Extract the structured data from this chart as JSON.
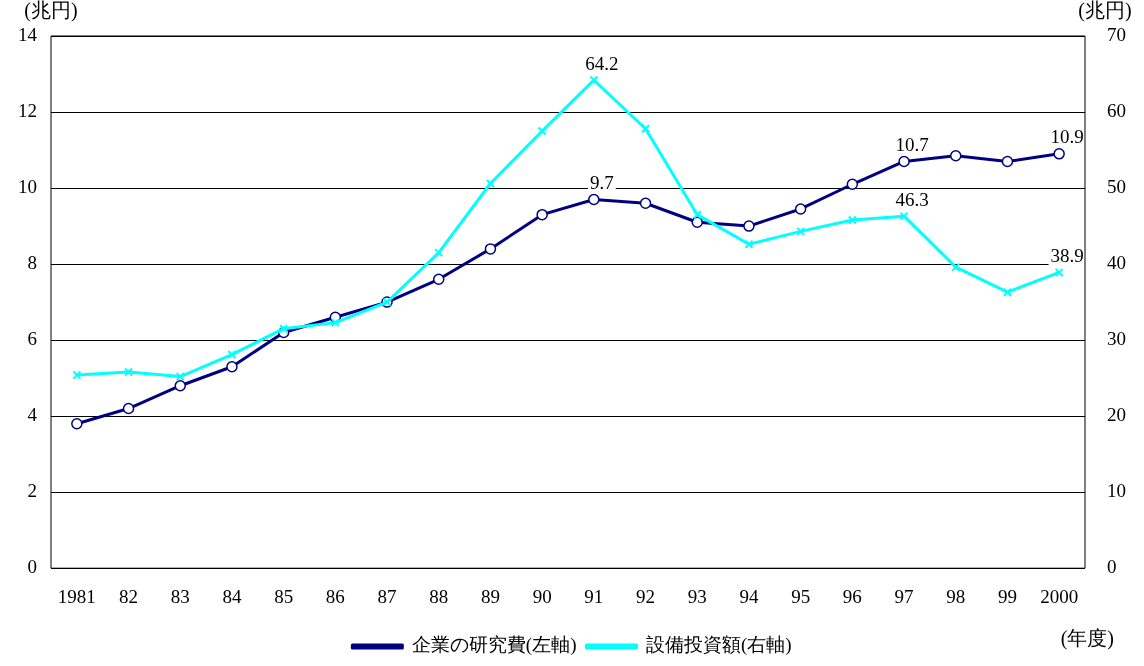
{
  "chart_data": {
    "type": "line",
    "ylabel": "(兆円)",
    "y2label": "(兆円)",
    "categories": [
      "1981",
      "82",
      "83",
      "84",
      "85",
      "86",
      "87",
      "88",
      "89",
      "90",
      "91",
      "92",
      "93",
      "94",
      "95",
      "96",
      "97",
      "98",
      "99",
      "2000"
    ],
    "series": [
      {
        "name": "企業の研究費(左軸)",
        "color": "#000080",
        "marker": "circle",
        "values": [
          3.8,
          4.2,
          4.8,
          5.3,
          6.2,
          6.6,
          7.0,
          7.6,
          8.4,
          9.3,
          9.7,
          9.6,
          9.1,
          9.0,
          9.45,
          10.1,
          10.7,
          10.85,
          10.7,
          10.9
        ],
        "value_labels": [
          null,
          null,
          null,
          null,
          null,
          null,
          null,
          null,
          null,
          null,
          "9.7",
          null,
          null,
          null,
          null,
          null,
          "10.7",
          null,
          null,
          "10.9"
        ]
      },
      {
        "name": "設備投資額(右軸)",
        "color": "#00ffff",
        "marker": "cross",
        "axis": "y2",
        "values": [
          25.4,
          25.8,
          25.2,
          28.1,
          31.5,
          32.3,
          35.0,
          41.5,
          50.6,
          57.5,
          64.2,
          57.8,
          46.5,
          42.6,
          44.3,
          45.8,
          46.3,
          39.6,
          36.3,
          38.9
        ],
        "value_labels": [
          null,
          null,
          null,
          null,
          null,
          null,
          null,
          null,
          null,
          null,
          "64.2",
          null,
          null,
          null,
          null,
          null,
          "46.3",
          null,
          null,
          "38.9"
        ]
      }
    ],
    "ylim": [
      0,
      14
    ],
    "yticks": [
      0,
      2,
      4,
      6,
      8,
      10,
      12,
      14
    ],
    "y2lim": [
      0,
      70
    ],
    "y2ticks": [
      0,
      10,
      20,
      30,
      40,
      50,
      60,
      70
    ],
    "grid": "y",
    "legend": "bottom",
    "line_style": "solid",
    "annotations": [
      "(年度)"
    ]
  }
}
